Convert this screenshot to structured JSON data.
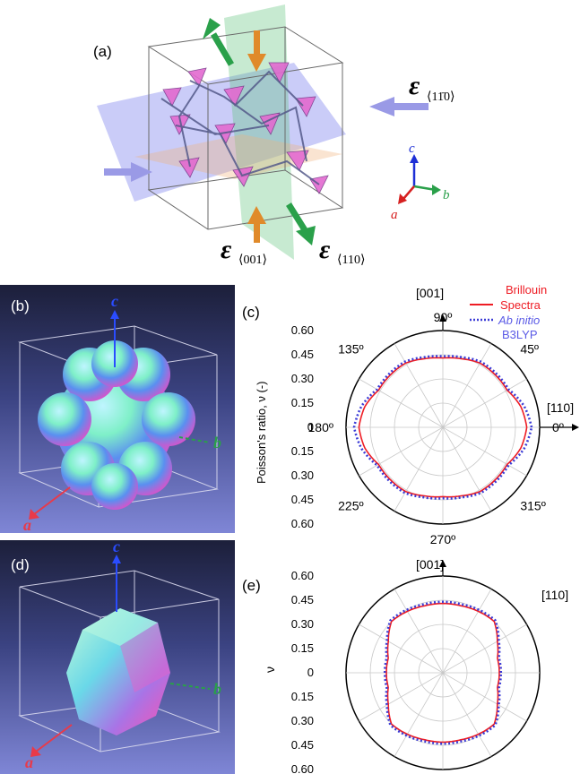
{
  "panel_a": {
    "label": "(a)",
    "strain_1": "ε",
    "strain_1_sub": "⟨11̄0⟩",
    "strain_2": "ε",
    "strain_2_sub": "⟨001⟩",
    "strain_3": "ε",
    "strain_3_sub": "⟨110⟩",
    "axis_a": "a",
    "axis_b": "b",
    "axis_c": "c"
  },
  "panel_b": {
    "label": "(b)",
    "axis_a": "a",
    "axis_b": "b",
    "axis_c": "c"
  },
  "panel_d": {
    "label": "(d)",
    "axis_a": "a",
    "axis_b": "b",
    "axis_c": "c"
  },
  "panel_c": {
    "label": "(c)",
    "ylabel": "Poisson's ratio, ν (-)",
    "dir_up": "[001]",
    "dir_right": "[110]",
    "angles": [
      "90º",
      "45º",
      "0º",
      "315º",
      "270º",
      "225º",
      "180º",
      "135º"
    ],
    "legend": [
      {
        "name": "Brillouin Spectra",
        "color": "#ee1c24",
        "style": "solid"
      },
      {
        "name": "Ab initio B3LYP",
        "color": "#3b3bd6",
        "style": "dotted"
      }
    ]
  },
  "panel_e": {
    "label": "(e)",
    "ylabel": "ν",
    "dir_up": "[001]",
    "dir_right": "[110]"
  },
  "chart_data": [
    {
      "type": "polar",
      "panel": "c",
      "ylabel": "Poisson's ratio, ν (-)",
      "ticks": [
        "0.60",
        "0.45",
        "0.30",
        "0.15",
        "0",
        "0.15",
        "0.30",
        "0.45",
        "0.60"
      ],
      "rlim": [
        0,
        0.6
      ],
      "theta_deg": [
        0,
        15,
        30,
        45,
        60,
        75,
        90,
        105,
        120,
        135,
        150,
        165,
        180,
        195,
        210,
        225,
        240,
        255,
        270,
        285,
        300,
        315,
        330,
        345
      ],
      "series": [
        {
          "name": "Brillouin Spectra",
          "values": [
            0.52,
            0.5,
            0.46,
            0.46,
            0.46,
            0.44,
            0.43,
            0.44,
            0.46,
            0.46,
            0.46,
            0.5,
            0.52,
            0.5,
            0.46,
            0.46,
            0.46,
            0.44,
            0.43,
            0.44,
            0.46,
            0.46,
            0.46,
            0.5
          ]
        },
        {
          "name": "Ab initio B3LYP",
          "values": [
            0.55,
            0.52,
            0.47,
            0.47,
            0.47,
            0.45,
            0.44,
            0.45,
            0.47,
            0.47,
            0.47,
            0.52,
            0.55,
            0.52,
            0.47,
            0.47,
            0.47,
            0.45,
            0.44,
            0.45,
            0.47,
            0.47,
            0.47,
            0.52
          ]
        }
      ]
    },
    {
      "type": "polar",
      "panel": "e",
      "ylabel": "ν",
      "ticks": [
        "0.60",
        "0.45",
        "0.30",
        "0.15",
        "0",
        "0.15",
        "0.30",
        "0.45",
        "0.60"
      ],
      "rlim": [
        0,
        0.6
      ],
      "theta_deg": [
        0,
        15,
        30,
        45,
        60,
        75,
        90,
        105,
        120,
        135,
        150,
        165,
        180,
        195,
        210,
        225,
        240,
        255,
        270,
        285,
        300,
        315,
        330,
        345
      ],
      "series": [
        {
          "values": [
            0.35,
            0.35,
            0.39,
            0.45,
            0.44,
            0.43,
            0.43,
            0.43,
            0.44,
            0.45,
            0.39,
            0.35,
            0.35,
            0.35,
            0.39,
            0.45,
            0.44,
            0.43,
            0.43,
            0.43,
            0.44,
            0.45,
            0.39,
            0.35
          ],
          "color": "#ee1c24"
        },
        {
          "values": [
            0.36,
            0.36,
            0.4,
            0.46,
            0.45,
            0.44,
            0.44,
            0.44,
            0.45,
            0.46,
            0.4,
            0.36,
            0.36,
            0.36,
            0.4,
            0.46,
            0.45,
            0.44,
            0.44,
            0.44,
            0.45,
            0.46,
            0.4,
            0.36
          ],
          "color": "#3b3bd6"
        }
      ]
    }
  ]
}
